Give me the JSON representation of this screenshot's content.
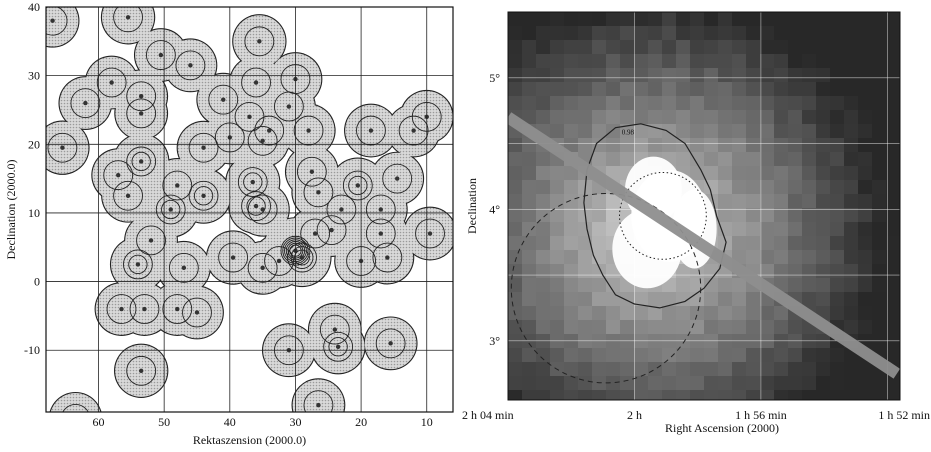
{
  "chart_data": [
    {
      "type": "heatmap",
      "xlabel": "Rektaszension (2000.0)",
      "ylabel": "Declination (2000.0)",
      "xlim": [
        68,
        6
      ],
      "ylim": [
        -19,
        40
      ],
      "xticks": [
        60,
        50,
        40,
        30,
        20,
        10
      ],
      "yticks": [
        40,
        30,
        20,
        10,
        0,
        -10
      ],
      "grid": true,
      "x_reversed": true,
      "colors": {
        "fill": "#bdbdbd",
        "contour": "#222222",
        "peak": "#333333"
      },
      "sources": [
        {
          "x": 67,
          "y": 38,
          "w": 1
        },
        {
          "x": 55.5,
          "y": 38.5,
          "w": 1.2
        },
        {
          "x": 50.5,
          "y": 33,
          "w": 1
        },
        {
          "x": 46,
          "y": 31.5,
          "w": 1
        },
        {
          "x": 35.5,
          "y": 35,
          "w": 1.2
        },
        {
          "x": 30,
          "y": 29.5,
          "w": 1
        },
        {
          "x": 36,
          "y": 29,
          "w": 1
        },
        {
          "x": 41,
          "y": 26.5,
          "w": 1
        },
        {
          "x": 37,
          "y": 24,
          "w": 1
        },
        {
          "x": 34,
          "y": 22,
          "w": 1
        },
        {
          "x": 28,
          "y": 22,
          "w": 1.1
        },
        {
          "x": 31,
          "y": 25.5,
          "w": 1
        },
        {
          "x": 40,
          "y": 21,
          "w": 1
        },
        {
          "x": 44,
          "y": 19.5,
          "w": 1
        },
        {
          "x": 35,
          "y": 20.5,
          "w": 1
        },
        {
          "x": 58,
          "y": 29,
          "w": 1
        },
        {
          "x": 62,
          "y": 26,
          "w": 1
        },
        {
          "x": 53.5,
          "y": 27,
          "w": 1
        },
        {
          "x": 53.5,
          "y": 24.5,
          "w": 1
        },
        {
          "x": 65.5,
          "y": 19.5,
          "w": 1.2
        },
        {
          "x": 53.5,
          "y": 17.5,
          "w": 2
        },
        {
          "x": 57,
          "y": 15.5,
          "w": 1
        },
        {
          "x": 55.5,
          "y": 12.5,
          "w": 1
        },
        {
          "x": 48,
          "y": 14,
          "w": 1.4
        },
        {
          "x": 49,
          "y": 10.5,
          "w": 2
        },
        {
          "x": 44,
          "y": 12.5,
          "w": 1.8
        },
        {
          "x": 36.5,
          "y": 14.5,
          "w": 1.5
        },
        {
          "x": 36,
          "y": 11,
          "w": 1.8
        },
        {
          "x": 35,
          "y": 10.5,
          "w": 1.2
        },
        {
          "x": 27.5,
          "y": 16,
          "w": 1
        },
        {
          "x": 26.5,
          "y": 13,
          "w": 1.1
        },
        {
          "x": 20.5,
          "y": 14,
          "w": 1.8
        },
        {
          "x": 14.5,
          "y": 15,
          "w": 1
        },
        {
          "x": 18.5,
          "y": 22,
          "w": 1
        },
        {
          "x": 12,
          "y": 22,
          "w": 1
        },
        {
          "x": 10,
          "y": 24,
          "w": 1
        },
        {
          "x": 23,
          "y": 10.5,
          "w": 1
        },
        {
          "x": 17,
          "y": 10.5,
          "w": 1
        },
        {
          "x": 17,
          "y": 7,
          "w": 1.2
        },
        {
          "x": 20,
          "y": 3,
          "w": 1
        },
        {
          "x": 16,
          "y": 3.5,
          "w": 1
        },
        {
          "x": 9.5,
          "y": 7,
          "w": 1
        },
        {
          "x": 30,
          "y": 4.5,
          "w": 6
        },
        {
          "x": 29,
          "y": 3.5,
          "w": 3
        },
        {
          "x": 32.5,
          "y": 3,
          "w": 1.3
        },
        {
          "x": 35,
          "y": 2,
          "w": 1
        },
        {
          "x": 39.5,
          "y": 3.5,
          "w": 1.2
        },
        {
          "x": 27,
          "y": 7,
          "w": 1
        },
        {
          "x": 24.5,
          "y": 7.5,
          "w": 1
        },
        {
          "x": 52,
          "y": 6,
          "w": 1
        },
        {
          "x": 54,
          "y": 2.5,
          "w": 1.8
        },
        {
          "x": 47,
          "y": 2,
          "w": 1
        },
        {
          "x": 56.5,
          "y": -4,
          "w": 1
        },
        {
          "x": 53,
          "y": -4,
          "w": 1
        },
        {
          "x": 48,
          "y": -4,
          "w": 1
        },
        {
          "x": 45,
          "y": -4.5,
          "w": 1
        },
        {
          "x": 53.5,
          "y": -13,
          "w": 1.2
        },
        {
          "x": 31,
          "y": -10,
          "w": 1
        },
        {
          "x": 23.5,
          "y": -9.5,
          "w": 1.5
        },
        {
          "x": 24,
          "y": -7,
          "w": 1
        },
        {
          "x": 15.5,
          "y": -9,
          "w": 1
        },
        {
          "x": 26.5,
          "y": -18,
          "w": 1
        },
        {
          "x": 63.5,
          "y": -20,
          "w": 1
        }
      ]
    },
    {
      "type": "heatmap",
      "xlabel": "Right Ascension (2000)",
      "ylabel": "Declination",
      "xticklabels": [
        "2 h 04 min",
        "2 h",
        "1 h 56 min",
        "1 h 52 min"
      ],
      "xtick_minutes_before_2h": [
        4,
        0,
        -4,
        -8
      ],
      "xlim_minutes_before_2h": [
        4,
        -8.4
      ],
      "yticklabels": [
        "5°",
        "4°",
        "3°"
      ],
      "yticks_deg": [
        5,
        4,
        3
      ],
      "ylim_deg": [
        2.55,
        5.5
      ],
      "grid": true,
      "contour_label": "0.98",
      "colors": {
        "background": "#2a2a2a",
        "bright": "#ffffff",
        "band": "#8f8f8f",
        "contour": "#222222"
      },
      "band": {
        "from": [
          4,
          4.7
        ],
        "to": [
          -8.3,
          2.75
        ],
        "width_deg": 0.09
      },
      "dotted_circle": {
        "center": [
          -0.9,
          3.95
        ],
        "radius_deg": 0.33
      },
      "dashed_circle": {
        "center": [
          0.9,
          3.4
        ],
        "radius_deg": 0.72
      },
      "contour": [
        [
          1.6,
          4.05
        ],
        [
          1.5,
          4.3
        ],
        [
          1.2,
          4.5
        ],
        [
          0.6,
          4.62
        ],
        [
          -0.2,
          4.65
        ],
        [
          -1.0,
          4.6
        ],
        [
          -1.6,
          4.5
        ],
        [
          -2.1,
          4.3
        ],
        [
          -2.4,
          4.15
        ],
        [
          -2.6,
          3.95
        ],
        [
          -2.9,
          3.75
        ],
        [
          -2.7,
          3.55
        ],
        [
          -2.2,
          3.4
        ],
        [
          -1.6,
          3.3
        ],
        [
          -0.8,
          3.25
        ],
        [
          0,
          3.28
        ],
        [
          0.6,
          3.35
        ],
        [
          1.0,
          3.5
        ],
        [
          1.3,
          3.65
        ],
        [
          1.5,
          3.85
        ]
      ],
      "bright_blobs": [
        {
          "center": [
            -1.1,
            3.95
          ],
          "r": [
            1.2,
            0.35
          ]
        },
        {
          "center": [
            -0.6,
            4.15
          ],
          "r": [
            0.9,
            0.25
          ]
        },
        {
          "center": [
            -0.4,
            3.7
          ],
          "r": [
            1.1,
            0.3
          ]
        },
        {
          "center": [
            -1.9,
            3.85
          ],
          "r": [
            0.7,
            0.3
          ]
        }
      ]
    }
  ]
}
